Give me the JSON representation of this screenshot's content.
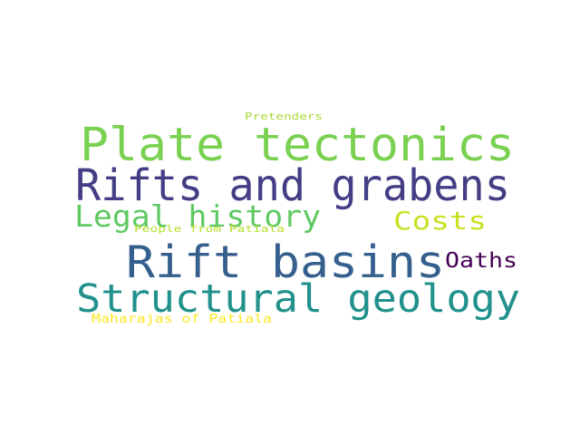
{
  "words": [
    {
      "text": "Plate tectonics",
      "color": "#7ad151"
    },
    {
      "text": "Rifts and grabens",
      "color": "#433e85"
    },
    {
      "text": "Rift basins",
      "color": "#355f8d"
    },
    {
      "text": "Structural geology",
      "color": "#21918c"
    },
    {
      "text": "Legal history",
      "color": "#5ec962"
    },
    {
      "text": "Costs",
      "color": "#c8e020"
    },
    {
      "text": "Oaths",
      "color": "#440154"
    },
    {
      "text": "Pretenders",
      "color": "#a5db36"
    },
    {
      "text": "People from Patiala",
      "color": "#b5de2b"
    },
    {
      "text": "Maharajas of Patiala",
      "color": "#fde725"
    }
  ]
}
